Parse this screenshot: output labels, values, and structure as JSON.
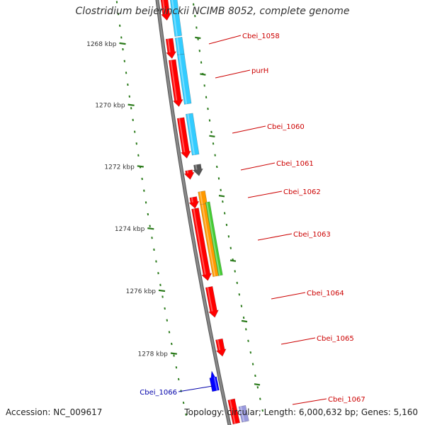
{
  "title": "Clostridium beijerinckii NCIMB 8052, complete genome",
  "accession_label": "Accession: NC_009617",
  "topology_label": "Topology: circular; Length: 6,000,632 bp; Genes: 5,160",
  "ticks": [
    {
      "label": "1268 kbp",
      "kbp": 1268
    },
    {
      "label": "1270 kbp",
      "kbp": 1270
    },
    {
      "label": "1272 kbp",
      "kbp": 1272
    },
    {
      "label": "1274 kbp",
      "kbp": 1274
    },
    {
      "label": "1276 kbp",
      "kbp": 1276
    },
    {
      "label": "1278 kbp",
      "kbp": 1278
    }
  ],
  "genes": [
    {
      "label": "Cbei_1058",
      "strand": "forward"
    },
    {
      "label": "purH",
      "strand": "forward"
    },
    {
      "label": "Cbei_1060",
      "strand": "forward"
    },
    {
      "label": "Cbei_1061",
      "strand": "forward"
    },
    {
      "label": "Cbei_1062",
      "strand": "forward"
    },
    {
      "label": "Cbei_1063",
      "strand": "forward"
    },
    {
      "label": "Cbei_1064",
      "strand": "forward"
    },
    {
      "label": "Cbei_1065",
      "strand": "forward"
    },
    {
      "label": "Cbei_1066",
      "strand": "reverse"
    },
    {
      "label": "Cbei_1067",
      "strand": "forward"
    }
  ],
  "colors": {
    "forward_cds": "#ff0000",
    "reverse_cds": "#0000ff",
    "cog_blue": "#33ccff",
    "cog_gray": "#555555",
    "cog_orange": "#ff9900",
    "cog_green": "#44cc33",
    "tick": "#2a7a1a",
    "backbone": "#888888",
    "forward_label": "#cc0000",
    "reverse_label": "#0000aa"
  }
}
